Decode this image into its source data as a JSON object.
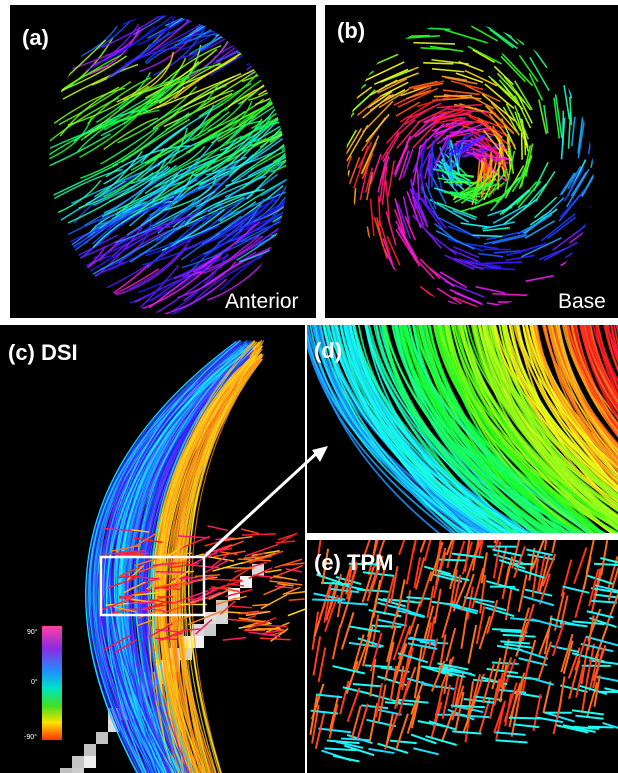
{
  "panels": [
    {
      "label": "(a)",
      "caption": "Anterior"
    },
    {
      "label": "(b)",
      "caption": "Base"
    },
    {
      "label": "(c) DSI"
    },
    {
      "label": "(d)"
    },
    {
      "label": "(e) TPM"
    }
  ],
  "colorbar": {
    "ticks": [
      "90°",
      "0°",
      "-90°"
    ]
  }
}
